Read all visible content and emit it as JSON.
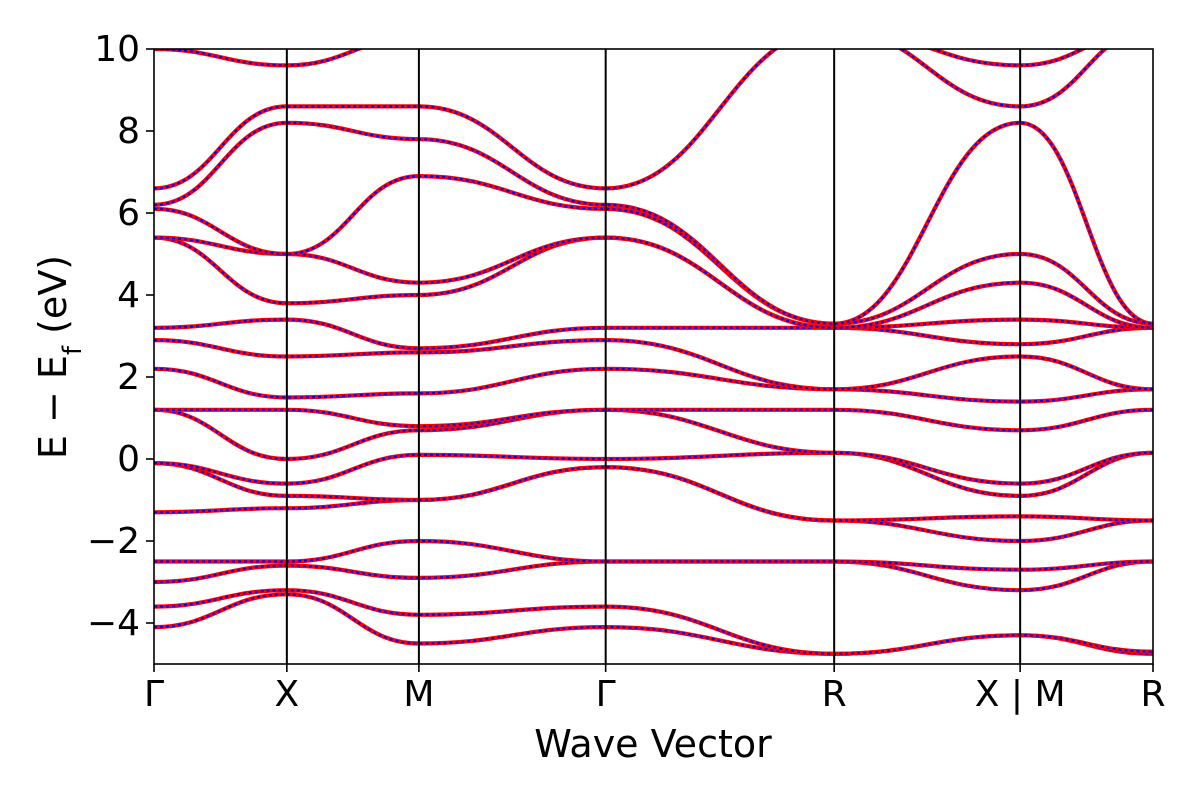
{
  "chart_data": {
    "type": "line",
    "title": "",
    "xlabel": "Wave Vector",
    "ylabel": "E − E",
    "ylabel_sub": "f",
    "ylabel_unit": " (eV)",
    "ylim": [
      -5,
      10
    ],
    "yticks": [
      10,
      8,
      6,
      4,
      2,
      0,
      -2,
      -4
    ],
    "ytick_labels": [
      "10",
      "8",
      "6",
      "4",
      "2",
      "0",
      "−2",
      "−4"
    ],
    "kpath_labels": [
      "Γ",
      "X",
      "M",
      "Γ",
      "R",
      "X | M",
      "R"
    ],
    "kpath_positions": [
      0,
      1,
      1.994,
      3.4,
      5.12,
      6.52,
      7.52
    ],
    "colors": {
      "dft": "#ff0000",
      "model": "#0000ff"
    },
    "series": [
      {
        "name": "",
        "x": [
          0,
          1,
          1.994,
          3.4,
          5.12,
          6.52,
          7.52
        ],
        "values": [
          -4.1,
          -3.3,
          -4.5,
          -4.1,
          -4.75,
          -4.3,
          -4.75
        ]
      },
      {
        "name": "",
        "x": [
          0,
          1,
          1.994,
          3.4,
          5.12,
          6.52,
          7.52
        ],
        "values": [
          -3.6,
          -3.2,
          -3.8,
          -3.6,
          -4.75,
          -4.3,
          -4.7
        ]
      },
      {
        "name": "",
        "x": [
          0,
          1,
          1.994,
          3.4,
          5.12,
          6.52,
          7.52
        ],
        "values": [
          -3.0,
          -2.6,
          -2.9,
          -2.5,
          -2.5,
          -3.2,
          -2.5
        ]
      },
      {
        "name": "",
        "x": [
          0,
          1,
          1.994,
          3.4,
          5.12,
          6.52,
          7.52
        ],
        "values": [
          -2.5,
          -2.5,
          -2.0,
          -2.5,
          -2.5,
          -2.7,
          -2.5
        ]
      },
      {
        "name": "",
        "x": [
          0,
          1,
          1.994,
          3.4,
          5.12,
          6.52,
          7.52
        ],
        "values": [
          -1.3,
          -1.2,
          -1.0,
          -0.2,
          -1.5,
          -2.0,
          -1.5
        ]
      },
      {
        "name": "",
        "x": [
          0,
          1,
          1.994,
          3.4,
          5.12,
          6.52,
          7.52
        ],
        "values": [
          -0.1,
          -0.9,
          -1.0,
          -0.2,
          -1.5,
          -1.4,
          -1.5
        ]
      },
      {
        "name": "",
        "x": [
          0,
          1,
          1.994,
          3.4,
          5.12,
          6.52,
          7.52
        ],
        "values": [
          -0.1,
          -0.6,
          0.1,
          0.0,
          0.15,
          -0.9,
          0.15
        ]
      },
      {
        "name": "",
        "x": [
          0,
          1,
          1.994,
          3.4,
          5.12,
          6.52,
          7.52
        ],
        "values": [
          1.2,
          0.0,
          0.7,
          1.2,
          0.15,
          -0.6,
          0.15
        ]
      },
      {
        "name": "",
        "x": [
          0,
          1,
          1.994,
          3.4,
          5.12,
          6.52,
          7.52
        ],
        "values": [
          1.2,
          1.2,
          0.8,
          1.2,
          1.2,
          0.7,
          1.2
        ]
      },
      {
        "name": "",
        "x": [
          0,
          1,
          1.994,
          3.4,
          5.12,
          6.52,
          7.52
        ],
        "values": [
          2.2,
          1.5,
          1.6,
          2.2,
          1.7,
          1.4,
          1.7
        ]
      },
      {
        "name": "",
        "x": [
          0,
          1,
          1.994,
          3.4,
          5.12,
          6.52,
          7.52
        ],
        "values": [
          2.9,
          2.5,
          2.6,
          2.9,
          1.7,
          2.5,
          1.7
        ]
      },
      {
        "name": "",
        "x": [
          0,
          1,
          1.994,
          3.4,
          5.12,
          6.52,
          7.52
        ],
        "values": [
          3.2,
          3.4,
          2.7,
          3.2,
          3.2,
          2.8,
          3.2
        ]
      },
      {
        "name": "",
        "x": [
          0,
          1,
          1.994,
          3.4,
          5.12,
          6.52,
          7.52
        ],
        "values": [
          5.4,
          3.8,
          4.0,
          5.4,
          3.2,
          3.4,
          3.2
        ]
      },
      {
        "name": "",
        "x": [
          0,
          1,
          1.994,
          3.4,
          5.12,
          6.52,
          7.52
        ],
        "values": [
          5.4,
          5.0,
          4.3,
          5.4,
          3.2,
          4.3,
          3.2
        ]
      },
      {
        "name": "",
        "x": [
          0,
          1,
          1.994,
          3.4,
          5.12,
          6.52,
          7.52
        ],
        "values": [
          6.1,
          5.0,
          6.9,
          6.1,
          3.3,
          5.0,
          3.3
        ]
      },
      {
        "name": "",
        "x": [
          0,
          1,
          1.994,
          3.4,
          5.12,
          6.52,
          7.52
        ],
        "values": [
          6.2,
          8.2,
          7.8,
          6.2,
          3.3,
          8.2,
          3.3
        ]
      },
      {
        "name": "",
        "x": [
          0,
          1,
          1.994,
          3.4,
          5.12,
          6.52,
          7.52
        ],
        "values": [
          6.6,
          8.6,
          8.6,
          6.6,
          10.5,
          8.6,
          10.5
        ]
      },
      {
        "name": "",
        "x": [
          0,
          1,
          1.994,
          3.4,
          5.12,
          6.52,
          7.52
        ],
        "values": [
          10.0,
          9.6,
          10.3,
          10.3,
          10.5,
          9.6,
          10.5
        ]
      }
    ]
  }
}
